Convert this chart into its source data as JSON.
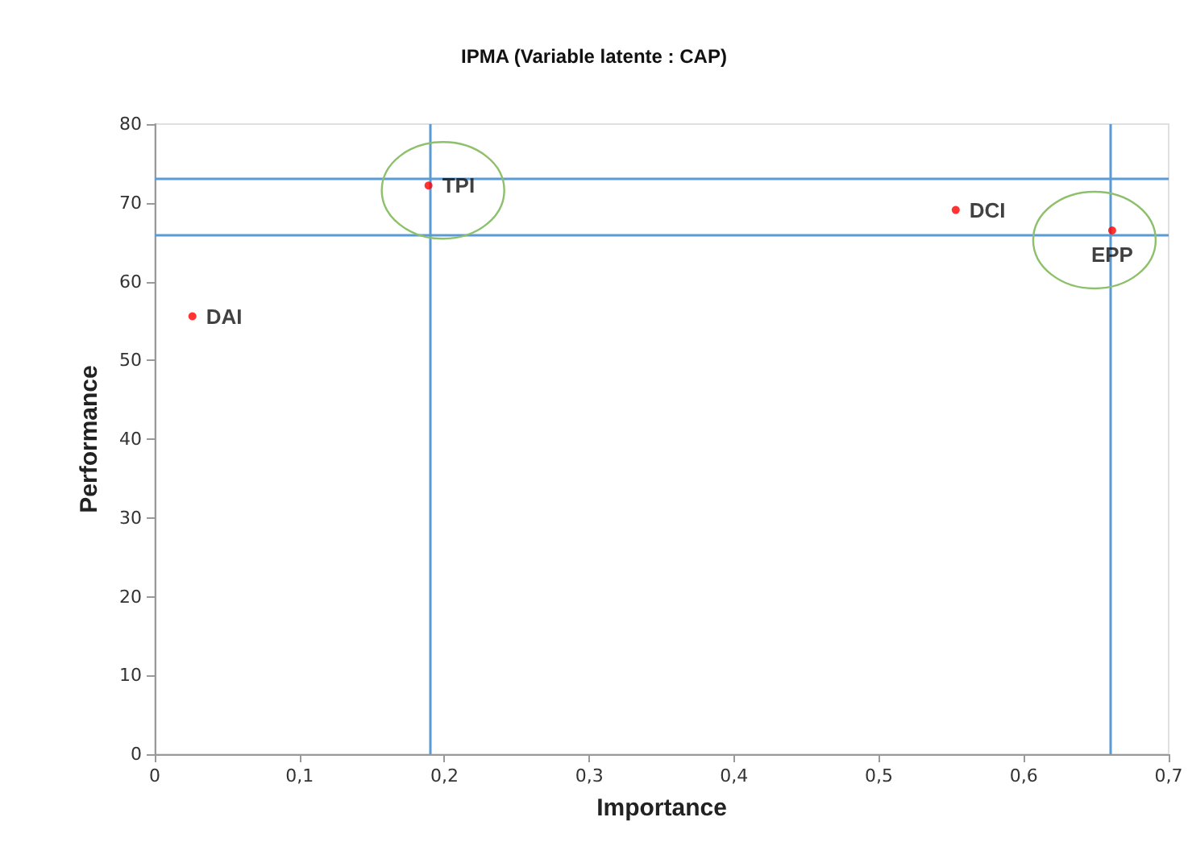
{
  "chart_data": {
    "type": "scatter",
    "title": "IPMA (Variable latente : CAP)",
    "xlabel": "Importance",
    "ylabel": "Performance",
    "xlim": [
      0,
      0.7
    ],
    "xticks": [
      0,
      {
        "value": 0.1,
        "label": "0,1"
      },
      {
        "value": 0.2,
        "label": "0,2"
      },
      {
        "value": 0.3,
        "label": "0,3"
      },
      {
        "value": 0.4,
        "label": "0,4"
      },
      {
        "value": 0.5,
        "label": "0,5"
      },
      {
        "value": 0.6,
        "label": "0,6"
      },
      {
        "value": 0.7,
        "label": "0,7"
      }
    ],
    "ylim": [
      0,
      80
    ],
    "yticks": [
      0,
      10,
      20,
      30,
      40,
      50,
      60,
      70,
      80
    ],
    "series": [
      {
        "name": "DAI",
        "color": "#ff0000",
        "x": [
          0.026
        ],
        "values": [
          55.6
        ]
      },
      {
        "name": "TPI",
        "color": "#ff0000",
        "x": [
          0.189
        ],
        "values": [
          72.2
        ]
      },
      {
        "name": "DCI",
        "color": "#ff0000",
        "x": [
          0.553
        ],
        "values": [
          69.1
        ]
      },
      {
        "name": "EPP",
        "color": "#ff0000",
        "x": [
          0.661
        ],
        "values": [
          66.5
        ]
      }
    ],
    "ref_lines": [
      {
        "axis": "x",
        "value": 0.188,
        "color": "#5b9bd5"
      },
      {
        "axis": "x",
        "value": 0.659,
        "color": "#5b9bd5"
      },
      {
        "axis": "y",
        "value": 73,
        "color": "#5b9bd5"
      },
      {
        "axis": "y",
        "value": 66,
        "color": "#5b9bd5"
      }
    ],
    "marker": "circle",
    "grid": false,
    "legend": false
  }
}
